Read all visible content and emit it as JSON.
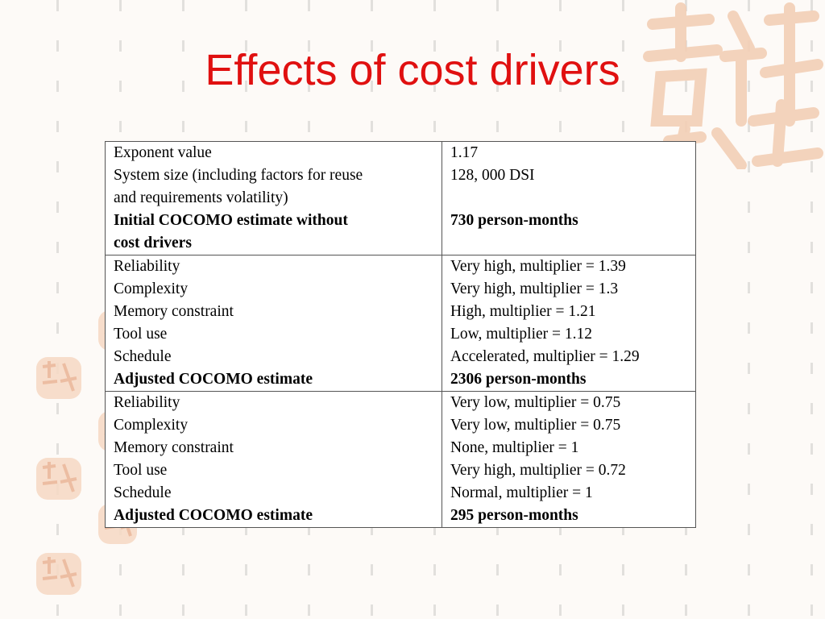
{
  "slide": {
    "title": "Effects of cost drivers"
  },
  "table": {
    "rows": [
      {
        "left": [
          "Exponent value",
          "System size (including factors for reuse",
          "and requirements volatility)",
          "Initial COCOMO estimate without",
          "cost drivers"
        ],
        "right": [
          "1.17",
          "128, 000 DSI",
          "",
          "730 person-months",
          ""
        ]
      },
      {
        "left": [
          "Reliability",
          "Complexity",
          "Memory constraint",
          "Tool use",
          "Schedule",
          "Adjusted COCOMO estimate"
        ],
        "right": [
          "Very high, multiplier = 1.39",
          "Very high, multiplier = 1.3",
          "High, multiplier = 1.21",
          "Low, multiplier = 1.12",
          "Accelerated, multiplier = 1.29",
          "2306 person-months"
        ]
      },
      {
        "left": [
          "Reliability",
          "Complexity",
          "Memory constraint",
          "Tool use",
          "Schedule",
          "Adjusted COCOMO estimate"
        ],
        "right": [
          "Very low, multiplier = 0.75",
          "Very low, multiplier = 0.75",
          "None, multiplier = 1",
          "Very high, multiplier = 0.72",
          "Normal, multiplier = 1",
          "295 person-months"
        ]
      }
    ]
  },
  "colors": {
    "title": "#e01010",
    "seal": "#f7d9c4",
    "background": "#fdfaf7"
  }
}
